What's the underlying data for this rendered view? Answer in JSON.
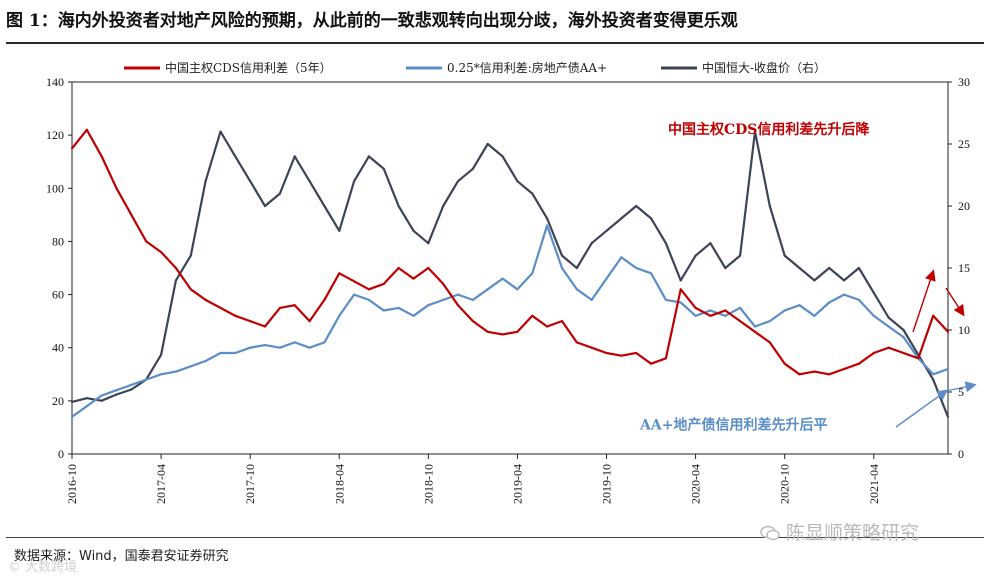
{
  "title": "图 1：海内外投资者对地产风险的预期，从此前的一致悲观转向出现分歧，海外投资者变得更乐观",
  "source": "数据来源：Wind，国泰君安证券研究",
  "watermark": "陈显顺策略研究",
  "watermark_left": "大数跨境",
  "colors": {
    "cds": "#c00000",
    "aa": "#5b8dc6",
    "evergrande": "#3c4458",
    "cds_note": "#c00000",
    "aa_note": "#5b8dc6",
    "arrow_red": "#c00000",
    "arrow_blue": "#5b8dc6"
  },
  "icons": {
    "watermark": "wechat-logo-icon",
    "watermark_left": "copyright-icon"
  },
  "chart_data": {
    "type": "line",
    "title": "",
    "x_ticks": [
      "2016-10",
      "2017-04",
      "2017-10",
      "2018-04",
      "2018-10",
      "2019-04",
      "2019-10",
      "2020-04",
      "2020-10",
      "2021-04"
    ],
    "x_range": [
      "2016-10",
      "2021-09"
    ],
    "y_left": {
      "min": 0,
      "max": 140,
      "ticks": [
        0,
        20,
        40,
        60,
        80,
        100,
        120,
        140
      ]
    },
    "y_right": {
      "min": 0,
      "max": 30,
      "ticks": [
        0,
        5,
        10,
        15,
        20,
        25,
        30
      ]
    },
    "series": [
      {
        "name": "中国主权CDS信用利差（5年）",
        "axis": "left",
        "color": "#c00000",
        "x": [
          "2016-10",
          "2016-11",
          "2016-12",
          "2017-01",
          "2017-02",
          "2017-03",
          "2017-04",
          "2017-05",
          "2017-06",
          "2017-07",
          "2017-08",
          "2017-09",
          "2017-10",
          "2017-11",
          "2017-12",
          "2018-01",
          "2018-02",
          "2018-03",
          "2018-04",
          "2018-05",
          "2018-06",
          "2018-07",
          "2018-08",
          "2018-09",
          "2018-10",
          "2018-11",
          "2018-12",
          "2019-01",
          "2019-02",
          "2019-03",
          "2019-04",
          "2019-05",
          "2019-06",
          "2019-07",
          "2019-08",
          "2019-09",
          "2019-10",
          "2019-11",
          "2019-12",
          "2020-01",
          "2020-02",
          "2020-03",
          "2020-04",
          "2020-05",
          "2020-06",
          "2020-07",
          "2020-08",
          "2020-09",
          "2020-10",
          "2020-11",
          "2020-12",
          "2021-01",
          "2021-02",
          "2021-03",
          "2021-04",
          "2021-05",
          "2021-06",
          "2021-07",
          "2021-08",
          "2021-09"
        ],
        "values": [
          115,
          122,
          112,
          100,
          90,
          80,
          76,
          70,
          62,
          58,
          55,
          52,
          50,
          48,
          55,
          56,
          50,
          58,
          68,
          65,
          62,
          64,
          70,
          66,
          70,
          64,
          56,
          50,
          46,
          45,
          46,
          52,
          48,
          50,
          42,
          40,
          38,
          37,
          38,
          34,
          36,
          62,
          55,
          52,
          54,
          50,
          46,
          42,
          34,
          30,
          31,
          30,
          32,
          34,
          38,
          40,
          38,
          36,
          52,
          46
        ]
      },
      {
        "name": "0.25*信用利差:房地产债AA+",
        "axis": "left",
        "color": "#5b8dc6",
        "x": [
          "2016-10",
          "2016-11",
          "2016-12",
          "2017-01",
          "2017-02",
          "2017-03",
          "2017-04",
          "2017-05",
          "2017-06",
          "2017-07",
          "2017-08",
          "2017-09",
          "2017-10",
          "2017-11",
          "2017-12",
          "2018-01",
          "2018-02",
          "2018-03",
          "2018-04",
          "2018-05",
          "2018-06",
          "2018-07",
          "2018-08",
          "2018-09",
          "2018-10",
          "2018-11",
          "2018-12",
          "2019-01",
          "2019-02",
          "2019-03",
          "2019-04",
          "2019-05",
          "2019-06",
          "2019-07",
          "2019-08",
          "2019-09",
          "2019-10",
          "2019-11",
          "2019-12",
          "2020-01",
          "2020-02",
          "2020-03",
          "2020-04",
          "2020-05",
          "2020-06",
          "2020-07",
          "2020-08",
          "2020-09",
          "2020-10",
          "2020-11",
          "2020-12",
          "2021-01",
          "2021-02",
          "2021-03",
          "2021-04",
          "2021-05",
          "2021-06",
          "2021-07",
          "2021-08",
          "2021-09"
        ],
        "values": [
          14,
          18,
          22,
          24,
          26,
          28,
          30,
          31,
          33,
          35,
          38,
          38,
          40,
          41,
          40,
          42,
          40,
          42,
          52,
          60,
          58,
          54,
          55,
          52,
          56,
          58,
          60,
          58,
          62,
          66,
          62,
          68,
          86,
          70,
          62,
          58,
          66,
          74,
          70,
          68,
          58,
          57,
          52,
          54,
          52,
          55,
          48,
          50,
          54,
          56,
          52,
          57,
          60,
          58,
          52,
          48,
          44,
          36,
          30,
          32
        ]
      },
      {
        "name": "中国恒大-收盘价（右）",
        "axis": "right",
        "color": "#3c4458",
        "x": [
          "2016-10",
          "2016-11",
          "2016-12",
          "2017-01",
          "2017-02",
          "2017-03",
          "2017-04",
          "2017-05",
          "2017-06",
          "2017-07",
          "2017-08",
          "2017-09",
          "2017-10",
          "2017-11",
          "2017-12",
          "2018-01",
          "2018-02",
          "2018-03",
          "2018-04",
          "2018-05",
          "2018-06",
          "2018-07",
          "2018-08",
          "2018-09",
          "2018-10",
          "2018-11",
          "2018-12",
          "2019-01",
          "2019-02",
          "2019-03",
          "2019-04",
          "2019-05",
          "2019-06",
          "2019-07",
          "2019-08",
          "2019-09",
          "2019-10",
          "2019-11",
          "2019-12",
          "2020-01",
          "2020-02",
          "2020-03",
          "2020-04",
          "2020-05",
          "2020-06",
          "2020-07",
          "2020-08",
          "2020-09",
          "2020-10",
          "2020-11",
          "2020-12",
          "2021-01",
          "2021-02",
          "2021-03",
          "2021-04",
          "2021-05",
          "2021-06",
          "2021-07",
          "2021-08",
          "2021-09"
        ],
        "values": [
          4.2,
          4.5,
          4.3,
          4.8,
          5.2,
          6,
          8,
          14,
          16,
          22,
          26,
          24,
          22,
          20,
          21,
          24,
          22,
          20,
          18,
          22,
          24,
          23,
          20,
          18,
          17,
          20,
          22,
          23,
          25,
          24,
          22,
          21,
          19,
          16,
          15,
          17,
          18,
          19,
          20,
          19,
          17,
          14,
          16,
          17,
          15,
          16,
          26,
          20,
          16,
          15,
          14,
          15,
          14,
          15,
          13,
          11,
          10,
          8,
          6,
          3
        ]
      }
    ],
    "annotations": [
      {
        "text": "中国主权CDS信用利差先升后降",
        "color": "#c00000",
        "near": "2021-04",
        "axis": "left",
        "y": 125
      },
      {
        "text": "AA+地产债信用利差先升后平",
        "color": "#5b8dc6",
        "near": "2021-01",
        "axis": "left",
        "y": 10
      }
    ],
    "legend_position": "top-center"
  }
}
